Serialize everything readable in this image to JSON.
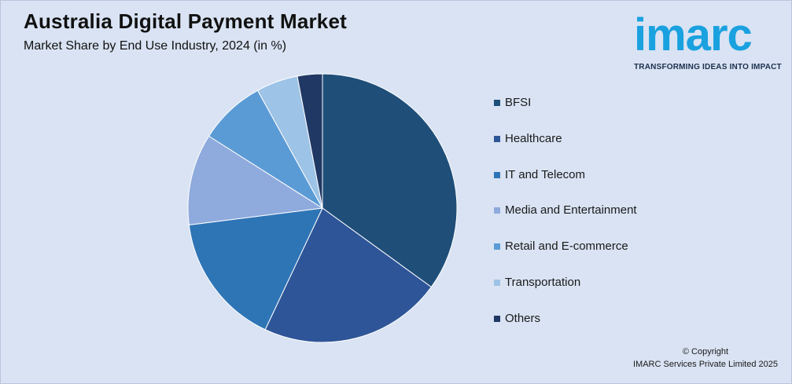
{
  "header": {
    "title": "Australia Digital Payment Market",
    "subtitle": "Market Share by End Use Industry, 2024 (in %)"
  },
  "logo": {
    "wordmark": "imarc",
    "tagline": "TRANSFORMING IDEAS INTO IMPACT"
  },
  "footer": {
    "copyright_line1": "© Copyright",
    "copyright_line2": "IMARC Services Private Limited 2025"
  },
  "chart_data": {
    "type": "pie",
    "title": "Australia Digital Payment Market",
    "subtitle": "Market Share by End Use Industry, 2024 (in %)",
    "legend_position": "right",
    "categories": [
      "BFSI",
      "Healthcare",
      "IT and Telecom",
      "Media and Entertainment",
      "Retail and E-commerce",
      "Transportation",
      "Others"
    ],
    "values": [
      35,
      22,
      16,
      11,
      8,
      5,
      3
    ],
    "colors": [
      "#1f4e79",
      "#2e5597",
      "#2e75b6",
      "#8faadc",
      "#5b9bd5",
      "#9dc3e6",
      "#203864"
    ]
  }
}
